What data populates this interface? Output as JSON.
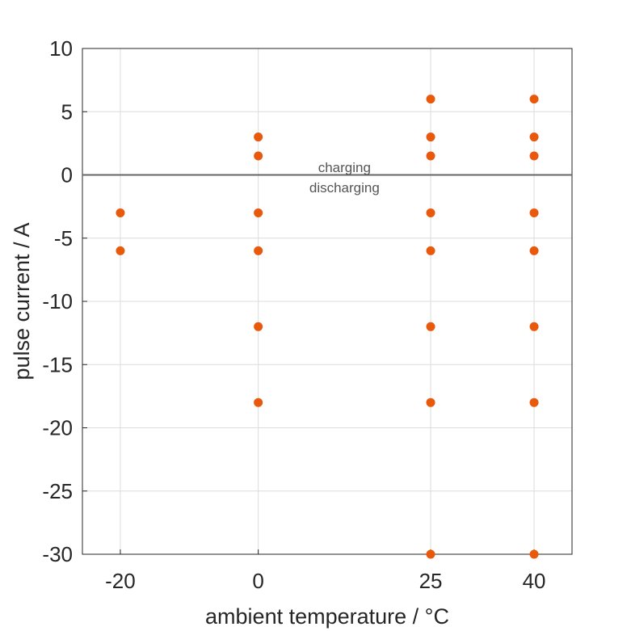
{
  "chart_data": {
    "type": "scatter",
    "xlabel": "ambient temperature / °C",
    "ylabel": "pulse current / A",
    "xlim": [
      -25.5,
      45.5
    ],
    "ylim": [
      -30,
      10
    ],
    "xticks": [
      -20,
      0,
      25,
      40
    ],
    "yticks": [
      10,
      5,
      0,
      -5,
      -10,
      -15,
      -20,
      -25,
      -30
    ],
    "grid": true,
    "marker_color": "#e8590c",
    "reference_line": {
      "y": 0,
      "color": "#666666"
    },
    "annotations": [
      {
        "text": "charging",
        "x": 12.5,
        "y": 0.6
      },
      {
        "text": "discharging",
        "x": 12.5,
        "y": -1.0
      }
    ],
    "points": [
      {
        "x": -20,
        "y": -3
      },
      {
        "x": -20,
        "y": -6
      },
      {
        "x": 0,
        "y": 3
      },
      {
        "x": 0,
        "y": 1.5
      },
      {
        "x": 0,
        "y": -3
      },
      {
        "x": 0,
        "y": -6
      },
      {
        "x": 0,
        "y": -12
      },
      {
        "x": 0,
        "y": -18
      },
      {
        "x": 25,
        "y": 6
      },
      {
        "x": 25,
        "y": 3
      },
      {
        "x": 25,
        "y": 1.5
      },
      {
        "x": 25,
        "y": -3
      },
      {
        "x": 25,
        "y": -6
      },
      {
        "x": 25,
        "y": -12
      },
      {
        "x": 25,
        "y": -18
      },
      {
        "x": 25,
        "y": -30
      },
      {
        "x": 40,
        "y": 6
      },
      {
        "x": 40,
        "y": 3
      },
      {
        "x": 40,
        "y": 1.5
      },
      {
        "x": 40,
        "y": -3
      },
      {
        "x": 40,
        "y": -6
      },
      {
        "x": 40,
        "y": -12
      },
      {
        "x": 40,
        "y": -18
      },
      {
        "x": 40,
        "y": -30
      }
    ]
  }
}
